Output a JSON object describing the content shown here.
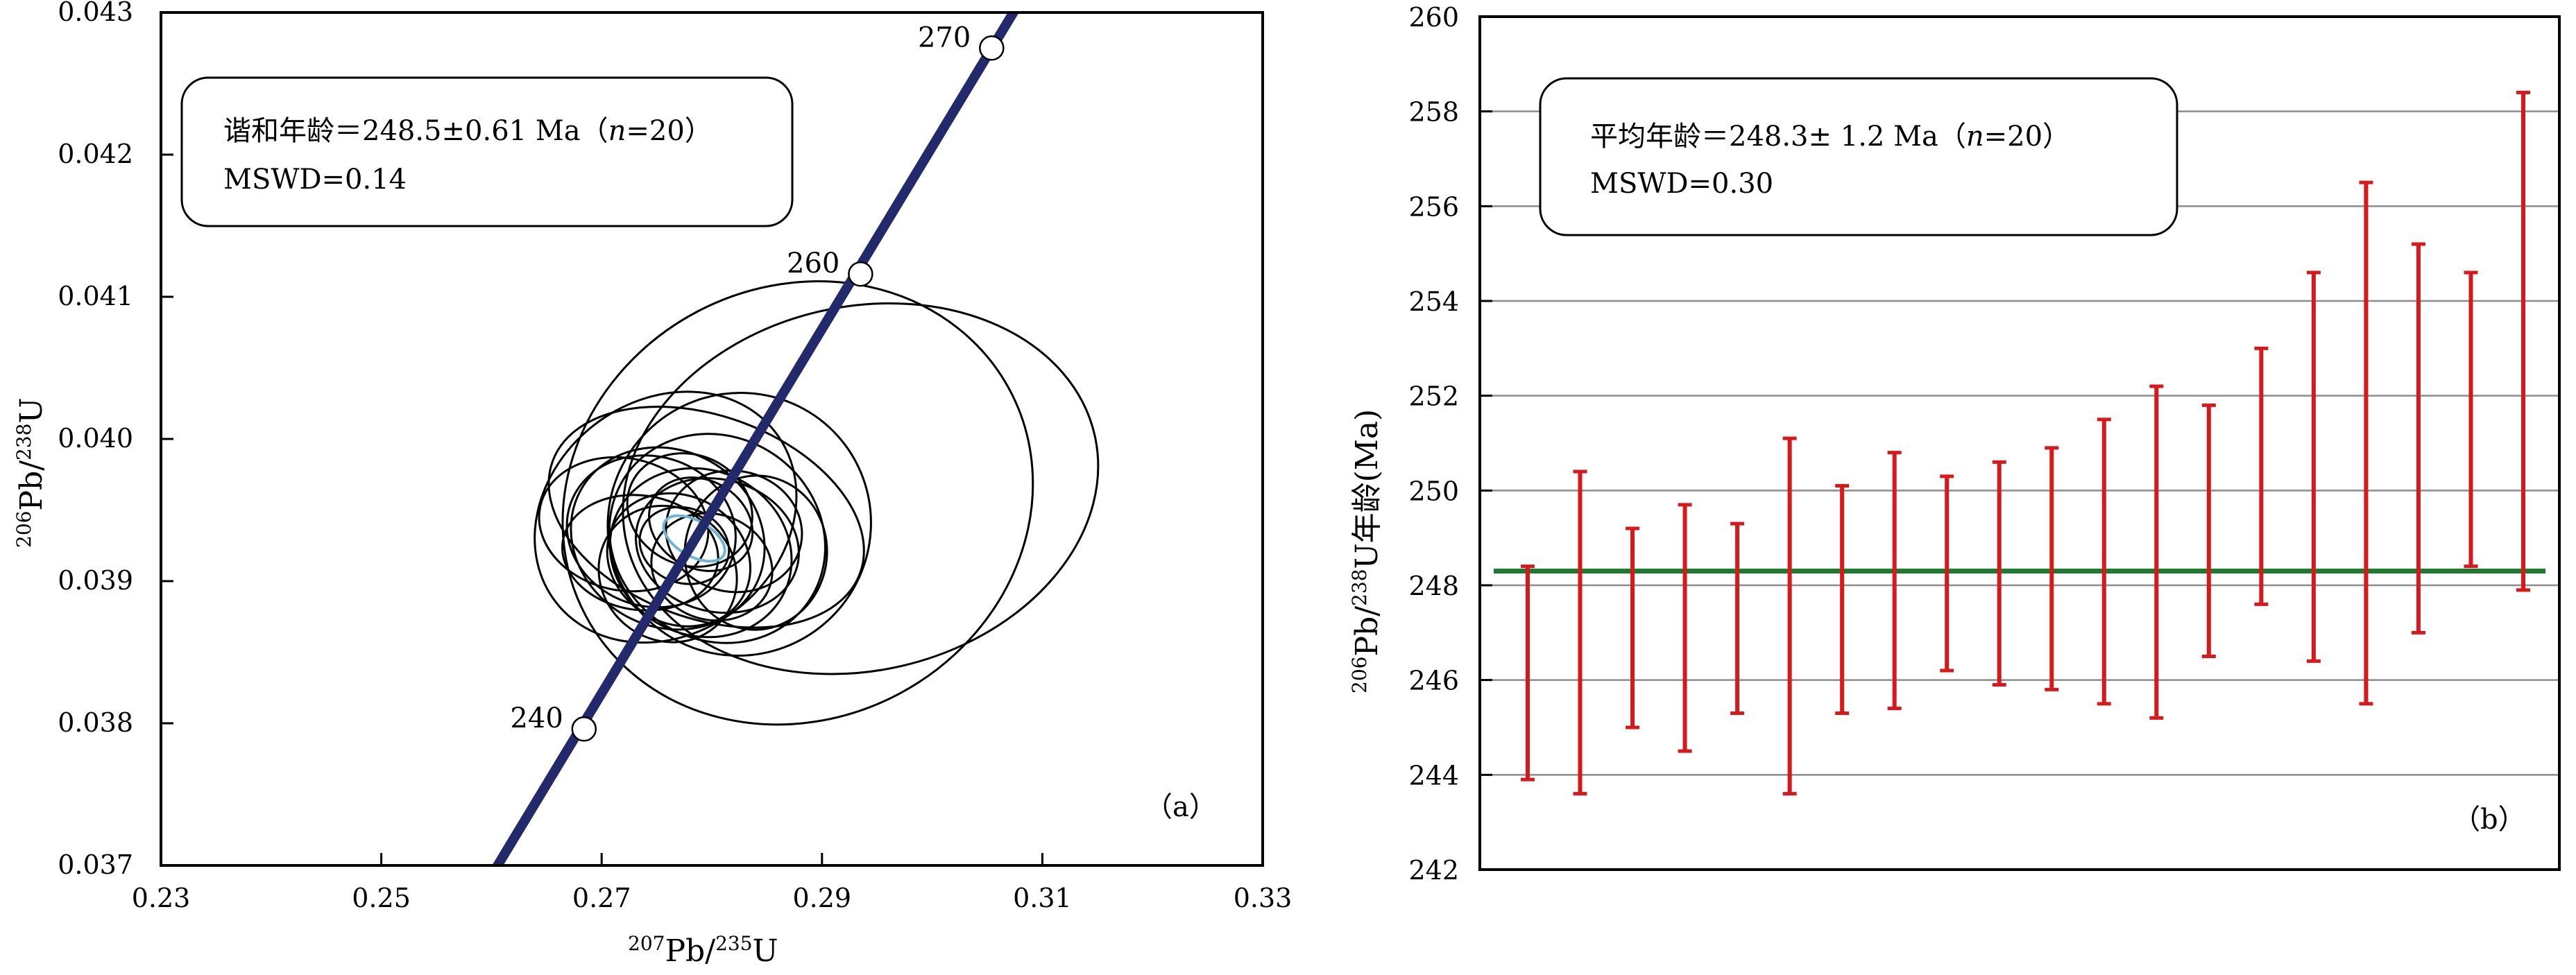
{
  "colors": {
    "concordia_line": "#232a6b",
    "ellipse_stroke": "#000000",
    "mean_ellipse": "#6fb6d6",
    "error_bar": "#d7191c",
    "mean_line": "#1e7a2e",
    "grid": "#8c8c8c"
  },
  "chart_data": [
    {
      "type": "scatter",
      "subtype": "concordia-diagram",
      "panel_label": "（a）",
      "xlabel": {
        "sup1": "207",
        "t1": "Pb/",
        "sup2": "235",
        "t2": "U"
      },
      "ylabel": {
        "sup1": "206",
        "t1": "Pb/",
        "sup2": "238",
        "t2": "U"
      },
      "xlim": [
        0.23,
        0.33
      ],
      "ylim": [
        0.037,
        0.043
      ],
      "xticks": [
        0.23,
        0.25,
        0.27,
        0.29,
        0.31,
        0.33
      ],
      "xtick_labels": [
        "0.23",
        "0.25",
        "0.27",
        "0.29",
        "0.31",
        "0.33"
      ],
      "yticks": [
        0.037,
        0.038,
        0.039,
        0.04,
        0.041,
        0.042,
        0.043
      ],
      "ytick_labels": [
        "0.037",
        "0.038",
        "0.039",
        "0.040",
        "0.041",
        "0.042",
        "0.043"
      ],
      "grid": false,
      "annotation": {
        "line1_prefix": "谐和年龄＝248.5±0.61 Ma（",
        "line1_n": "n",
        "line1_suffix": "=20）",
        "line2": "MSWD=0.14"
      },
      "concordia_ages": [
        {
          "label": "240",
          "x": 0.2684,
          "y": 0.03796
        },
        {
          "label": "260",
          "x": 0.2935,
          "y": 0.04116
        },
        {
          "label": "270",
          "x": 0.3054,
          "y": 0.04275
        }
      ],
      "concordia_line": {
        "x": [
          0.2604,
          0.308
        ],
        "y": [
          0.03698,
          0.04308
        ]
      },
      "mean_ellipse": {
        "cx": 0.2784,
        "cy": 0.0393,
        "rx": 0.0016,
        "ry": 0.00014
      },
      "ellipses": [
        {
          "cx": 0.2935,
          "cy": 0.03965,
          "rx": 0.0218,
          "ry": 0.00128,
          "rot": -13
        },
        {
          "cx": 0.2878,
          "cy": 0.03955,
          "rx": 0.0218,
          "ry": 0.00152,
          "rot": -28
        },
        {
          "cx": 0.2795,
          "cy": 0.03945,
          "rx": 0.0092,
          "ry": 0.00115,
          "rot": -70
        },
        {
          "cx": 0.2825,
          "cy": 0.0394,
          "rx": 0.012,
          "ry": 0.00092,
          "rot": -42
        },
        {
          "cx": 0.2758,
          "cy": 0.03945,
          "rx": 0.0126,
          "ry": 0.00082,
          "rot": -38
        },
        {
          "cx": 0.2805,
          "cy": 0.0393,
          "rx": 0.0092,
          "ry": 0.00078,
          "rot": -55
        },
        {
          "cx": 0.276,
          "cy": 0.0393,
          "rx": 0.008,
          "ry": 0.0007,
          "rot": -60
        },
        {
          "cx": 0.279,
          "cy": 0.0392,
          "rx": 0.0075,
          "ry": 0.00065,
          "rot": -65
        },
        {
          "cx": 0.2745,
          "cy": 0.03935,
          "rx": 0.0068,
          "ry": 0.0006,
          "rot": -72
        },
        {
          "cx": 0.2805,
          "cy": 0.03925,
          "rx": 0.006,
          "ry": 0.00058,
          "rot": -75
        },
        {
          "cx": 0.277,
          "cy": 0.03915,
          "rx": 0.0058,
          "ry": 0.00052,
          "rot": -60
        },
        {
          "cx": 0.282,
          "cy": 0.03935,
          "rx": 0.0055,
          "ry": 0.00048,
          "rot": -80
        },
        {
          "cx": 0.2735,
          "cy": 0.0392,
          "rx": 0.0052,
          "ry": 0.00055,
          "rot": -82
        },
        {
          "cx": 0.278,
          "cy": 0.0395,
          "rx": 0.005,
          "ry": 0.00045,
          "rot": -65
        },
        {
          "cx": 0.28,
          "cy": 0.0391,
          "rx": 0.0048,
          "ry": 0.00043,
          "rot": -72
        },
        {
          "cx": 0.276,
          "cy": 0.03905,
          "rx": 0.006,
          "ry": 0.0005,
          "rot": -50
        },
        {
          "cx": 0.284,
          "cy": 0.0392,
          "rx": 0.007,
          "ry": 0.0005,
          "rot": -85
        },
        {
          "cx": 0.272,
          "cy": 0.0394,
          "rx": 0.006,
          "ry": 0.0006,
          "rot": -78
        },
        {
          "cx": 0.279,
          "cy": 0.0394,
          "rx": 0.004,
          "ry": 0.00038,
          "rot": -60
        },
        {
          "cx": 0.2775,
          "cy": 0.03925,
          "rx": 0.0034,
          "ry": 0.00032,
          "rot": -70
        }
      ]
    },
    {
      "type": "errorbar",
      "subtype": "weighted-mean-age",
      "panel_label": "（b）",
      "ylabel": {
        "sup1": "206",
        "t1": "Pb/",
        "sup2": "238",
        "t2": "U年龄(Ma)"
      },
      "ylim": [
        242,
        260
      ],
      "yticks": [
        242,
        244,
        246,
        248,
        250,
        252,
        254,
        256,
        258,
        260
      ],
      "ytick_labels": [
        "242",
        "244",
        "246",
        "248",
        "250",
        "252",
        "254",
        "256",
        "258",
        "260"
      ],
      "grid": true,
      "annotation": {
        "line1_prefix": "平均年龄＝248.3± 1.2 Ma（",
        "line1_n": "n",
        "line1_suffix": "=20）",
        "line2": "MSWD=0.30"
      },
      "mean": 248.3,
      "bars": [
        {
          "low": 243.9,
          "high": 248.4
        },
        {
          "low": 243.6,
          "high": 250.4
        },
        {
          "low": 245.0,
          "high": 249.2
        },
        {
          "low": 244.5,
          "high": 249.7
        },
        {
          "low": 245.3,
          "high": 249.3
        },
        {
          "low": 243.6,
          "high": 251.1
        },
        {
          "low": 245.3,
          "high": 250.1
        },
        {
          "low": 245.4,
          "high": 250.8
        },
        {
          "low": 246.2,
          "high": 250.3
        },
        {
          "low": 245.9,
          "high": 250.6
        },
        {
          "low": 245.8,
          "high": 250.9
        },
        {
          "low": 245.5,
          "high": 251.5
        },
        {
          "low": 245.2,
          "high": 252.2
        },
        {
          "low": 246.5,
          "high": 251.8
        },
        {
          "low": 247.6,
          "high": 253.0
        },
        {
          "low": 246.4,
          "high": 254.6
        },
        {
          "low": 245.5,
          "high": 256.5
        },
        {
          "low": 247.0,
          "high": 255.2
        },
        {
          "low": 248.4,
          "high": 254.6
        },
        {
          "low": 247.9,
          "high": 258.4
        }
      ]
    }
  ]
}
